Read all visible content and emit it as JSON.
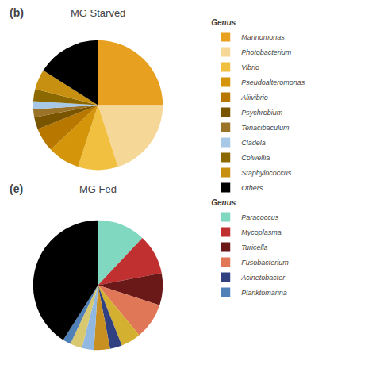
{
  "chart_data": [
    {
      "type": "pie",
      "title": "MG Starved",
      "annotations": [
        {
          "text": "(b)"
        }
      ],
      "legend": "right",
      "legend_title": "Genus",
      "categories": [
        "Marinomonas",
        "Photobacterium",
        "Vibrio",
        "Pseudoalteromonas",
        "Aliivibrio",
        "Psychrobium",
        "Tenacibaculum",
        "Cladela",
        "Colwellia",
        "Staphylococcus",
        "Others"
      ],
      "values": [
        25,
        20,
        10,
        8,
        6,
        3,
        2,
        2,
        3,
        5,
        16
      ],
      "colors": [
        "#E8A020",
        "#F5D898",
        "#F2C040",
        "#D4950A",
        "#B87800",
        "#7A5500",
        "#9A7228",
        "#A8C8E8",
        "#8B6800",
        "#C89010",
        "#000000"
      ]
    },
    {
      "type": "pie",
      "title": "MG Fed",
      "annotations": [
        {
          "text": "(e)"
        }
      ],
      "legend": "right",
      "legend_title": "Genus",
      "categories": [
        "Paracoccus",
        "Mycoplasma",
        "Turicella",
        "Fusobacterium",
        "Aliivibrio",
        "Acinetobacter",
        "Staphylococcus",
        "Cladela",
        "Photobacterium",
        "Planktomarina",
        "Others"
      ],
      "values": [
        12,
        10,
        8,
        9,
        5,
        3,
        4,
        3,
        3,
        2,
        41
      ],
      "colors": [
        "#80D8C0",
        "#C03030",
        "#6B1818",
        "#E07858",
        "#D4B030",
        "#304080",
        "#C89020",
        "#90B8E0",
        "#D8C870",
        "#5080B8",
        "#000000"
      ]
    }
  ]
}
